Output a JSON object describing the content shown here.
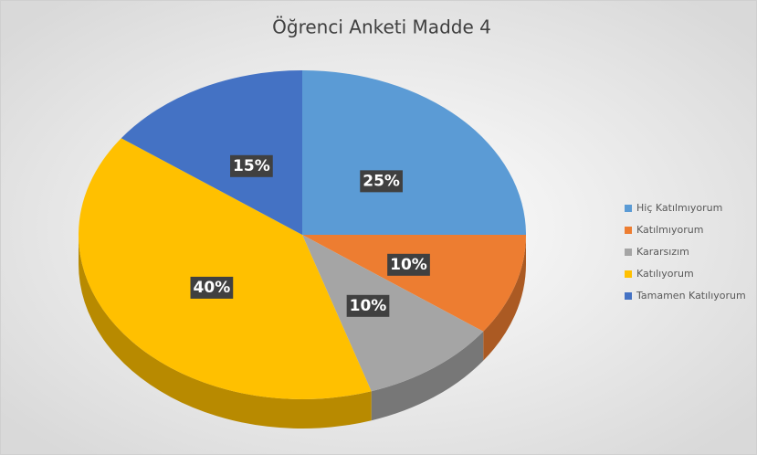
{
  "chart_data": {
    "type": "pie",
    "title": "Öğrenci Anketi Madde 4",
    "categories": [
      "Hiç Katılmıyorum",
      "Katılmıyorum",
      "Kararsızım",
      "Katılıyorum",
      "Tamamen Katılıyorum"
    ],
    "values": [
      25,
      10,
      10,
      40,
      15
    ],
    "value_labels": [
      "25%",
      "10%",
      "10%",
      "40%",
      "15%"
    ],
    "colors": [
      "#5b9bd5",
      "#ed7d31",
      "#a5a5a5",
      "#ffc000",
      "#4472c4"
    ],
    "legend": "right"
  }
}
